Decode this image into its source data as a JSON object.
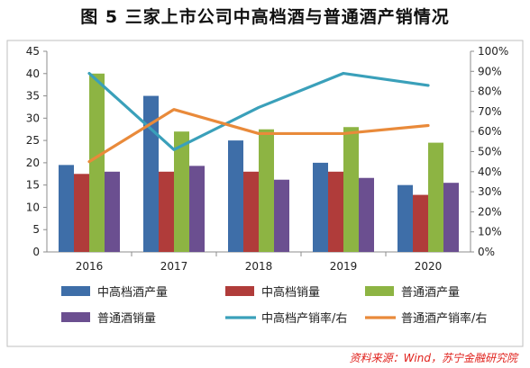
{
  "page": {
    "title": "图 5  三家上市公司中高档酒与普通酒产销情况",
    "source": "资料来源：Wind，苏宁金融研究院"
  },
  "colors": {
    "mid_high_output": "#3e6ea8",
    "mid_high_sales": "#b03c3a",
    "ordinary_output": "#8db443",
    "ordinary_sales": "#6b4f90",
    "mid_high_rate": "#3aa0ba",
    "ordinary_rate": "#e98a3a"
  },
  "chart_data": {
    "type": "bar",
    "title": "图 5  三家上市公司中高档酒与普通酒产销情况",
    "categories": [
      "2016",
      "2017",
      "2018",
      "2019",
      "2020"
    ],
    "y_left": {
      "ylim": [
        0,
        45
      ],
      "ticks": [
        "0",
        "5",
        "10",
        "15",
        "20",
        "25",
        "30",
        "35",
        "40",
        "45"
      ]
    },
    "y_right": {
      "ylim": [
        0,
        1
      ],
      "ticks": [
        "0%",
        "10%",
        "20%",
        "30%",
        "40%",
        "50%",
        "60%",
        "70%",
        "80%",
        "90%",
        "100%"
      ]
    },
    "grid": false,
    "legend_position": "bottom",
    "series": [
      {
        "name": "中高档酒产量",
        "kind": "bar",
        "axis": "left",
        "color": "#3e6ea8",
        "values": [
          19.5,
          35,
          25,
          20,
          15
        ]
      },
      {
        "name": "中高档销量",
        "kind": "bar",
        "axis": "left",
        "color": "#b03c3a",
        "values": [
          17.5,
          18,
          18,
          18,
          12.8
        ]
      },
      {
        "name": "普通酒产量",
        "kind": "bar",
        "axis": "left",
        "color": "#8db443",
        "values": [
          40,
          27,
          27.5,
          28,
          24.5
        ]
      },
      {
        "name": "普通酒销量",
        "kind": "bar",
        "axis": "left",
        "color": "#6b4f90",
        "values": [
          18,
          19.3,
          16.2,
          16.6,
          15.5
        ]
      },
      {
        "name": "中高档产销率/右",
        "kind": "line",
        "axis": "right",
        "color": "#3aa0ba",
        "values": [
          0.89,
          0.51,
          0.72,
          0.89,
          0.83
        ]
      },
      {
        "name": "普通酒产销率/右",
        "kind": "line",
        "axis": "right",
        "color": "#e98a3a",
        "values": [
          0.45,
          0.71,
          0.59,
          0.59,
          0.63
        ]
      }
    ]
  }
}
